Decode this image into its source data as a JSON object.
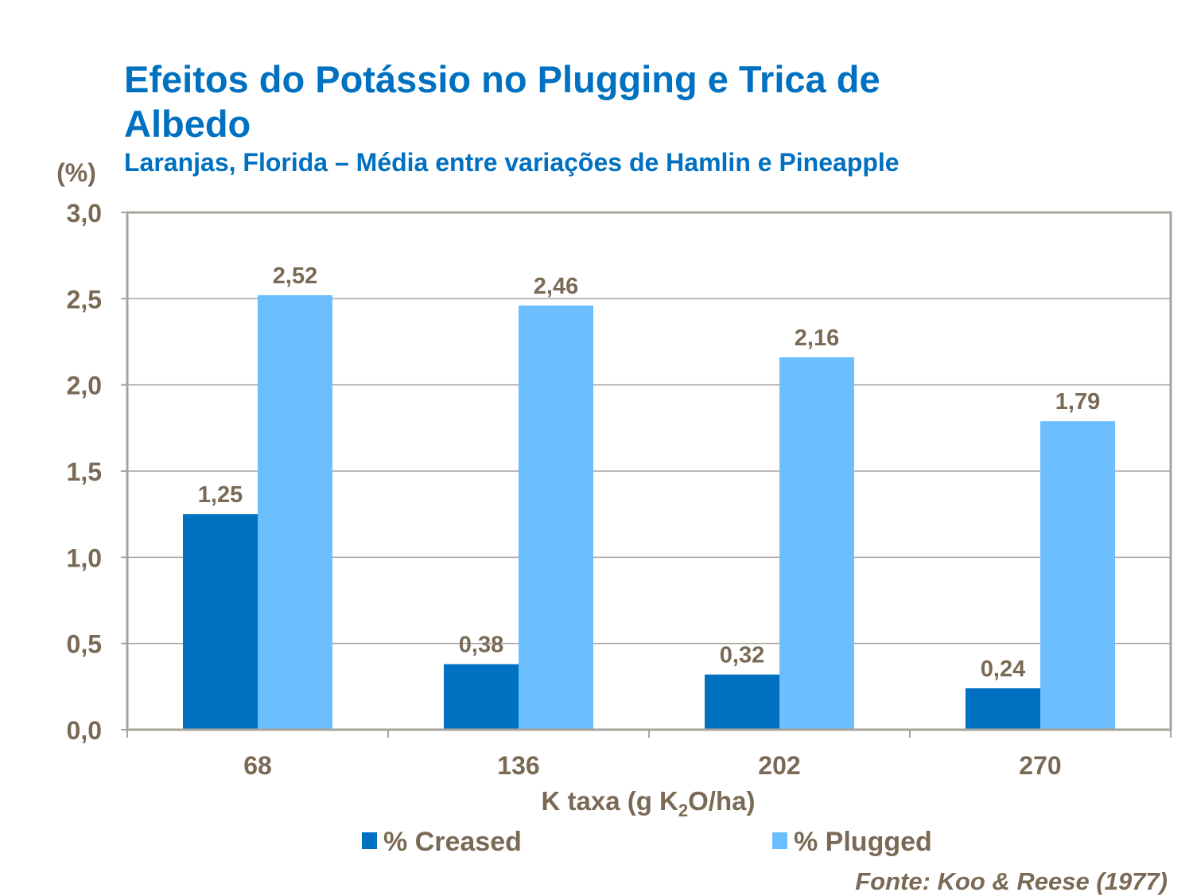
{
  "chart_data": {
    "type": "bar",
    "title": "Efeitos do Potássio no Plugging e Trica de Albedo",
    "subtitle": "Laranjas, Florida – Média entre variações de Hamlin e Pineapple",
    "ylabel": "(%)",
    "xlabel_parts": [
      "K taxa (g K",
      "2",
      "O/ha)"
    ],
    "categories": [
      "68",
      "136",
      "202",
      "270"
    ],
    "series": [
      {
        "name": "% Creased",
        "color": "#0070c0",
        "values": [
          1.25,
          0.38,
          0.32,
          0.24
        ],
        "labels": [
          "1,25",
          "0,38",
          "0,32",
          "0,24"
        ]
      },
      {
        "name": "% Plugged",
        "color": "#6bbfff",
        "values": [
          2.52,
          2.46,
          2.16,
          1.79
        ],
        "labels": [
          "2,52",
          "2,46",
          "2,16",
          "1,79"
        ]
      }
    ],
    "ylim": [
      0,
      3
    ],
    "yticks": [
      0,
      0.5,
      1,
      1.5,
      2,
      2.5,
      3
    ],
    "ytick_labels": [
      "0,0",
      "0,5",
      "1,0",
      "1,5",
      "2,0",
      "2,5",
      "3,0"
    ],
    "grid": true,
    "legend": "bottom",
    "source": "Fonte: Koo & Reese (1977)"
  }
}
